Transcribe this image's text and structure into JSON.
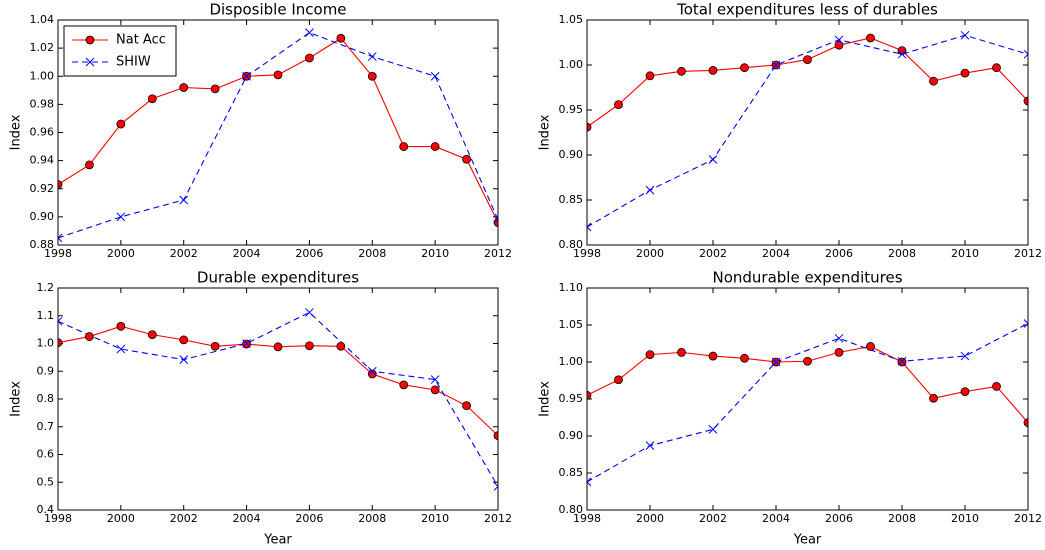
{
  "chart_data": [
    {
      "type": "line",
      "title": "Disposible Income",
      "ylabel": "Index",
      "xlim": [
        1998,
        2012
      ],
      "xticks": [
        1998,
        2000,
        2002,
        2004,
        2006,
        2008,
        2010,
        2012
      ],
      "ylim": [
        0.88,
        1.04
      ],
      "yticks": [
        0.88,
        {
          "value": 0.9,
          "label": "0.90"
        },
        0.92,
        0.94,
        0.96,
        0.98,
        {
          "value": 1,
          "label": "1.00"
        },
        1.02,
        1.04
      ],
      "legend": "upper left",
      "series": [
        {
          "name": "Nat Acc",
          "color": "#ff0000",
          "x": [
            1998,
            1999,
            2000,
            2001,
            2002,
            2003,
            2004,
            2005,
            2006,
            2007,
            2008,
            2009,
            2010,
            2011,
            2012
          ],
          "values": [
            0.923,
            0.937,
            0.966,
            0.984,
            0.992,
            0.991,
            1.0,
            1.001,
            1.013,
            1.027,
            1.0,
            0.95,
            0.95,
            0.941,
            0.896
          ]
        },
        {
          "name": "SHIW",
          "color": "#0000ff",
          "x": [
            1998,
            2000,
            2002,
            2004,
            2006,
            2008,
            2010,
            2012
          ],
          "values": [
            0.885,
            0.9,
            0.912,
            1.0,
            1.031,
            1.014,
            1.0,
            0.898
          ]
        }
      ]
    },
    {
      "type": "line",
      "title": "Total expenditures less of durables",
      "ylabel": "Index",
      "xlim": [
        1998,
        2012
      ],
      "xticks": [
        1998,
        2000,
        2002,
        2004,
        2006,
        2008,
        2010,
        2012
      ],
      "ylim": [
        0.8,
        1.05
      ],
      "yticks": [
        {
          "value": 0.8,
          "label": "0.80"
        },
        0.85,
        {
          "value": 0.9,
          "label": "0.90"
        },
        0.95,
        {
          "value": 1,
          "label": "1.00"
        },
        1.05
      ],
      "series": [
        {
          "name": "Nat Acc",
          "color": "#ff0000",
          "x": [
            1998,
            1999,
            2000,
            2001,
            2002,
            2003,
            2004,
            2005,
            2006,
            2007,
            2008,
            2009,
            2010,
            2011,
            2012
          ],
          "values": [
            0.931,
            0.956,
            0.988,
            0.993,
            0.994,
            0.997,
            1.0,
            1.006,
            1.022,
            1.03,
            1.016,
            0.982,
            0.991,
            0.997,
            0.96
          ]
        },
        {
          "name": "SHIW",
          "color": "#0000ff",
          "x": [
            1998,
            2000,
            2002,
            2004,
            2006,
            2008,
            2010,
            2012
          ],
          "values": [
            0.82,
            0.861,
            0.895,
            1.0,
            1.028,
            1.012,
            1.033,
            1.012
          ]
        }
      ]
    },
    {
      "type": "line",
      "title": "Durable expenditures",
      "ylabel": "Index",
      "xlabel": "Year",
      "xlim": [
        1998,
        2012
      ],
      "xticks": [
        1998,
        2000,
        2002,
        2004,
        2006,
        2008,
        2010,
        2012
      ],
      "ylim": [
        0.4,
        1.2
      ],
      "yticks": [
        0.4,
        0.5,
        0.6,
        0.7,
        0.8,
        0.9,
        {
          "value": 1,
          "label": "1.0"
        },
        1.1,
        1.2
      ],
      "series": [
        {
          "name": "Nat Acc",
          "color": "#ff0000",
          "x": [
            1998,
            1999,
            2000,
            2001,
            2002,
            2003,
            2004,
            2005,
            2006,
            2007,
            2008,
            2009,
            2010,
            2011,
            2012
          ],
          "values": [
            1.003,
            1.025,
            1.062,
            1.032,
            1.013,
            0.99,
            0.998,
            0.988,
            0.992,
            0.99,
            0.89,
            0.851,
            0.833,
            0.776,
            0.668
          ]
        },
        {
          "name": "SHIW",
          "color": "#0000ff",
          "x": [
            1998,
            2000,
            2002,
            2004,
            2006,
            2008,
            2010,
            2012
          ],
          "values": [
            1.08,
            0.98,
            0.942,
            1.0,
            1.112,
            0.9,
            0.87,
            0.485
          ]
        }
      ]
    },
    {
      "type": "line",
      "title": "Nondurable expenditures",
      "ylabel": "Index",
      "xlabel": "Year",
      "xlim": [
        1998,
        2012
      ],
      "xticks": [
        1998,
        2000,
        2002,
        2004,
        2006,
        2008,
        2010,
        2012
      ],
      "ylim": [
        0.8,
        1.1
      ],
      "yticks": [
        {
          "value": 0.8,
          "label": "0.80"
        },
        0.85,
        {
          "value": 0.9,
          "label": "0.90"
        },
        0.95,
        {
          "value": 1,
          "label": "1.00"
        },
        1.05,
        {
          "value": 1.1,
          "label": "1.10"
        }
      ],
      "series": [
        {
          "name": "Nat Acc",
          "color": "#ff0000",
          "x": [
            1998,
            1999,
            2000,
            2001,
            2002,
            2003,
            2004,
            2005,
            2006,
            2007,
            2008,
            2009,
            2010,
            2011,
            2012
          ],
          "values": [
            0.955,
            0.976,
            1.01,
            1.013,
            1.008,
            1.005,
            1.0,
            1.001,
            1.013,
            1.021,
            1.0,
            0.951,
            0.96,
            0.967,
            0.918
          ]
        },
        {
          "name": "SHIW",
          "color": "#0000ff",
          "x": [
            1998,
            2000,
            2002,
            2004,
            2006,
            2008,
            2010,
            2012
          ],
          "values": [
            0.838,
            0.887,
            0.909,
            1.0,
            1.032,
            1.001,
            1.008,
            1.052
          ]
        }
      ]
    }
  ]
}
